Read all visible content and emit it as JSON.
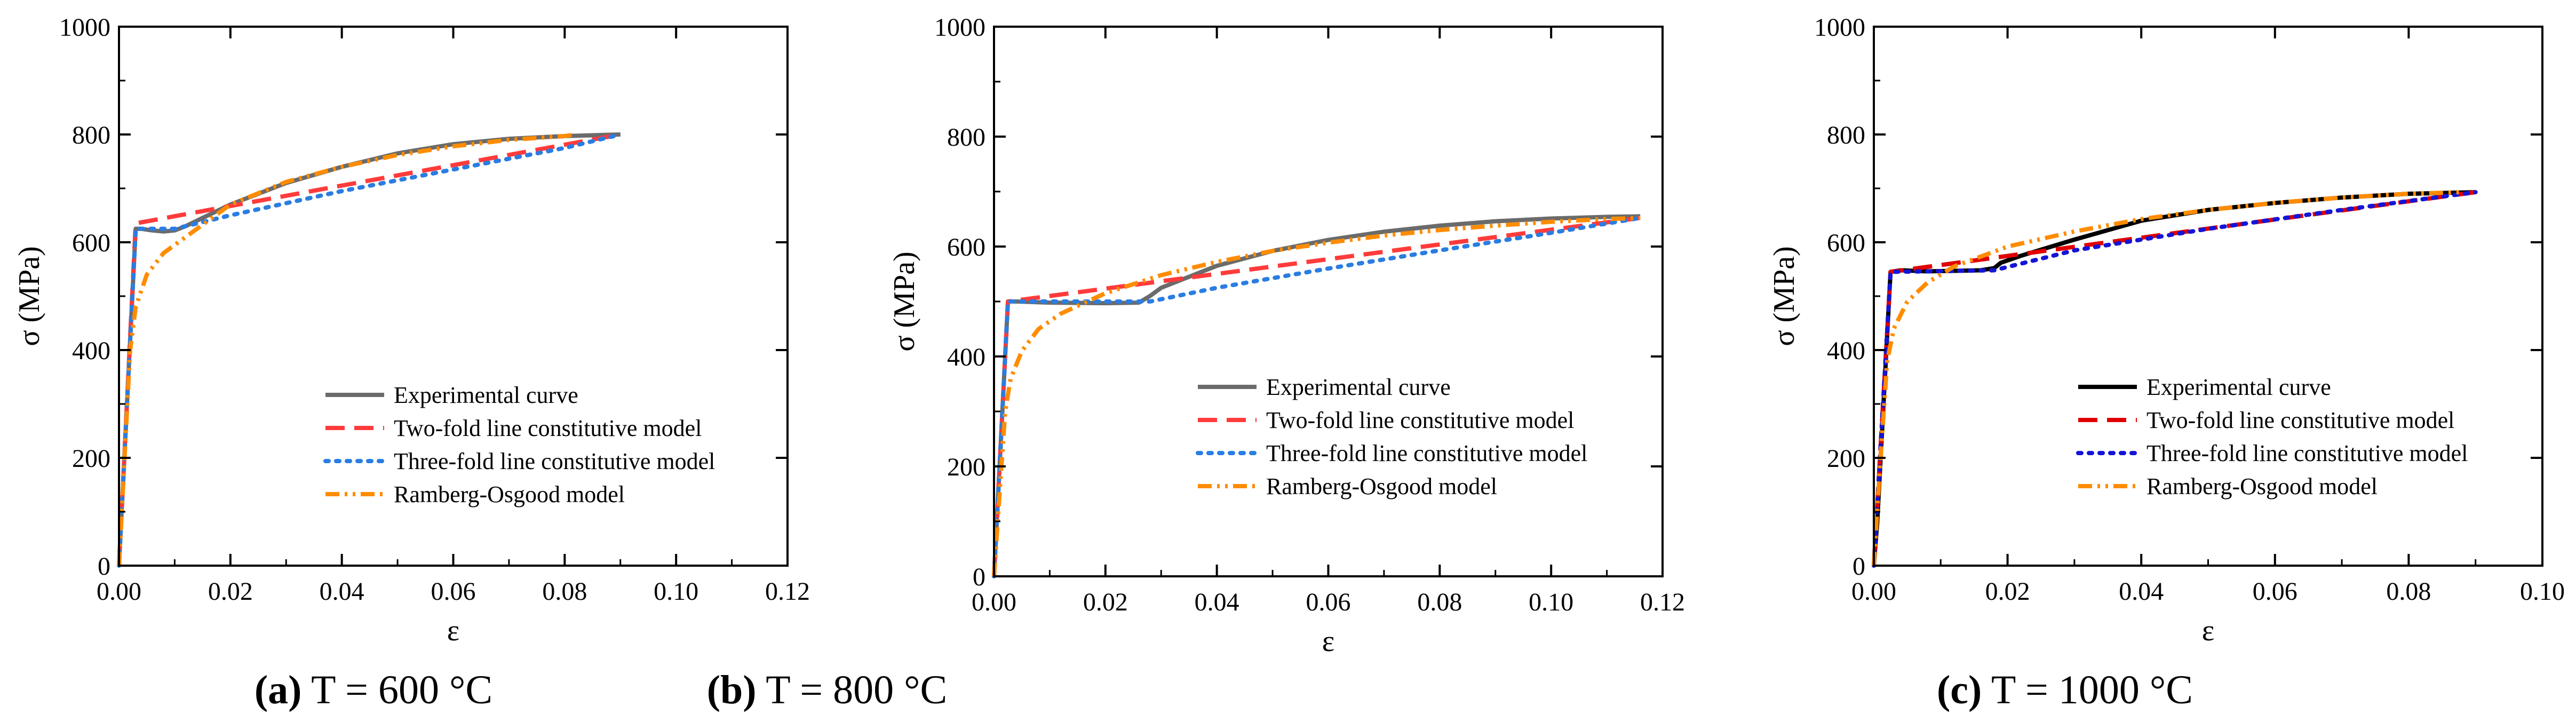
{
  "colors": {
    "experimental_ab": "#6b6b6b",
    "experimental_c": "#000000",
    "two_fold": "#ff3b3b",
    "two_fold_c": "#e00000",
    "three_fold": "#2a7de1",
    "three_fold_c": "#1414d6",
    "ramberg": "#ff8c00"
  },
  "chart_data": [
    {
      "type": "line",
      "caption_letter": "(a)",
      "caption_rest": " T = 600 °C",
      "xlabel": "ε",
      "ylabel": "σ (MPa)",
      "xlim": [
        0,
        0.12
      ],
      "ylim": [
        0,
        1000
      ],
      "xticks": [
        "0.00",
        "0.02",
        "0.04",
        "0.06",
        "0.08",
        "0.10",
        "0.12"
      ],
      "yticks": [
        "0",
        "200",
        "400",
        "600",
        "800",
        "1000"
      ],
      "xticks_values": [
        0,
        0.02,
        0.04,
        0.06,
        0.08,
        0.1,
        0.12
      ],
      "yticks_values": [
        0,
        200,
        400,
        600,
        800,
        1000
      ],
      "legend": [
        "Experimental curve",
        "Two-fold line constitutive model",
        "Three-fold line constitutive model",
        "Ramberg-Osgood model"
      ],
      "series": [
        {
          "name": "Experimental curve",
          "style": "solid",
          "color_key": "experimental_ab",
          "x": [
            0,
            0.003,
            0.004,
            0.006,
            0.008,
            0.01,
            0.012,
            0.015,
            0.02,
            0.03,
            0.04,
            0.05,
            0.06,
            0.07,
            0.08,
            0.09
          ],
          "y": [
            0,
            625,
            625,
            622,
            620,
            622,
            630,
            645,
            670,
            710,
            740,
            765,
            782,
            792,
            797,
            800
          ]
        },
        {
          "name": "Two-fold line constitutive model",
          "style": "dashed",
          "color_key": "two_fold",
          "x": [
            0,
            0.003,
            0.09
          ],
          "y": [
            0,
            635,
            800
          ]
        },
        {
          "name": "Three-fold line constitutive model",
          "style": "dotted",
          "color_key": "three_fold",
          "x": [
            0,
            0.003,
            0.01,
            0.02,
            0.04,
            0.06,
            0.08,
            0.09
          ],
          "y": [
            0,
            625,
            625,
            650,
            695,
            735,
            775,
            800
          ]
        },
        {
          "name": "Ramberg-Osgood model",
          "style": "dashdotdot",
          "color_key": "ramberg",
          "x": [
            0,
            0.001,
            0.002,
            0.003,
            0.005,
            0.008,
            0.012,
            0.02,
            0.03,
            0.04,
            0.05,
            0.06,
            0.07,
            0.08,
            0.082
          ],
          "y": [
            0,
            200,
            400,
            480,
            540,
            580,
            610,
            670,
            712,
            740,
            762,
            778,
            790,
            797,
            800
          ]
        }
      ]
    },
    {
      "type": "line",
      "caption_letter": "(b)",
      "caption_rest": " T = 800 °C",
      "xlabel": "ε",
      "ylabel": "σ (MPa)",
      "xlim": [
        0,
        0.12
      ],
      "ylim": [
        0,
        1000
      ],
      "xticks": [
        "0.00",
        "0.02",
        "0.04",
        "0.06",
        "0.08",
        "0.10",
        "0.12"
      ],
      "yticks": [
        "0",
        "200",
        "400",
        "600",
        "800",
        "1000"
      ],
      "xticks_values": [
        0,
        0.02,
        0.04,
        0.06,
        0.08,
        0.1,
        0.12
      ],
      "yticks_values": [
        0,
        200,
        400,
        600,
        800,
        1000
      ],
      "legend": [
        "Experimental curve",
        "Two-fold line constitutive model",
        "Three-fold line constitutive model",
        "Ramberg-Osgood model"
      ],
      "series": [
        {
          "name": "Experimental curve",
          "style": "solid",
          "color_key": "experimental_ab",
          "x": [
            0,
            0.0025,
            0.004,
            0.01,
            0.02,
            0.026,
            0.028,
            0.03,
            0.04,
            0.05,
            0.06,
            0.07,
            0.08,
            0.09,
            0.1,
            0.11,
            0.116
          ],
          "y": [
            0,
            500,
            500,
            498,
            497,
            498,
            510,
            525,
            565,
            592,
            612,
            627,
            638,
            646,
            651,
            654,
            655
          ]
        },
        {
          "name": "Two-fold line constitutive model",
          "style": "dashed",
          "color_key": "two_fold",
          "x": [
            0,
            0.0025,
            0.116
          ],
          "y": [
            0,
            500,
            652
          ]
        },
        {
          "name": "Three-fold line constitutive model",
          "style": "dotted",
          "color_key": "three_fold",
          "x": [
            0,
            0.0025,
            0.028,
            0.04,
            0.06,
            0.08,
            0.1,
            0.116
          ],
          "y": [
            0,
            500,
            500,
            525,
            560,
            593,
            625,
            652
          ]
        },
        {
          "name": "Ramberg-Osgood model",
          "style": "dashdotdot",
          "color_key": "ramberg",
          "x": [
            0,
            0.001,
            0.002,
            0.003,
            0.005,
            0.008,
            0.012,
            0.02,
            0.03,
            0.04,
            0.05,
            0.06,
            0.07,
            0.08,
            0.09,
            0.1,
            0.11,
            0.116
          ],
          "y": [
            0,
            150,
            300,
            360,
            410,
            450,
            478,
            515,
            548,
            572,
            592,
            607,
            620,
            630,
            638,
            645,
            650,
            652
          ]
        }
      ]
    },
    {
      "type": "line",
      "caption_letter": "(c)",
      "caption_rest": " T = 1000 °C",
      "xlabel": "ε",
      "ylabel": "σ (MPa)",
      "xlim": [
        0,
        0.1
      ],
      "ylim": [
        0,
        1000
      ],
      "xticks": [
        "0.00",
        "0.02",
        "0.04",
        "0.06",
        "0.08",
        "0.10"
      ],
      "yticks": [
        "0",
        "200",
        "400",
        "600",
        "800",
        "1000"
      ],
      "xticks_values": [
        0,
        0.02,
        0.04,
        0.06,
        0.08,
        0.1
      ],
      "yticks_values": [
        0,
        200,
        400,
        600,
        800,
        1000
      ],
      "legend": [
        "Experimental curve",
        "Two-fold line constitutive model",
        "Three-fold line constitutive model",
        "Ramberg-Osgood model"
      ],
      "series": [
        {
          "name": "Experimental curve",
          "style": "solid",
          "color_key": "experimental_c",
          "x": [
            0,
            0.0005,
            0.0025,
            0.004,
            0.008,
            0.012,
            0.016,
            0.018,
            0.019,
            0.022,
            0.03,
            0.04,
            0.05,
            0.06,
            0.07,
            0.08,
            0.09
          ],
          "y": [
            0,
            80,
            545,
            548,
            546,
            547,
            548,
            552,
            562,
            575,
            605,
            640,
            660,
            673,
            683,
            690,
            693
          ]
        },
        {
          "name": "Two-fold line constitutive model",
          "style": "dashed",
          "color_key": "two_fold_c",
          "x": [
            0,
            0.0025,
            0.09
          ],
          "y": [
            0,
            545,
            693
          ]
        },
        {
          "name": "Three-fold line constitutive model",
          "style": "dotted",
          "color_key": "three_fold_c",
          "x": [
            0,
            0.0025,
            0.018,
            0.03,
            0.05,
            0.07,
            0.09
          ],
          "y": [
            0,
            545,
            548,
            585,
            625,
            660,
            693
          ]
        },
        {
          "name": "Ramberg-Osgood model",
          "style": "dashdotdot",
          "color_key": "ramberg",
          "x": [
            0,
            0.001,
            0.002,
            0.003,
            0.005,
            0.008,
            0.012,
            0.02,
            0.03,
            0.04,
            0.05,
            0.06,
            0.07,
            0.08,
            0.088
          ],
          "y": [
            0,
            200,
            380,
            440,
            490,
            525,
            555,
            592,
            620,
            643,
            660,
            673,
            683,
            690,
            693
          ]
        }
      ]
    }
  ]
}
